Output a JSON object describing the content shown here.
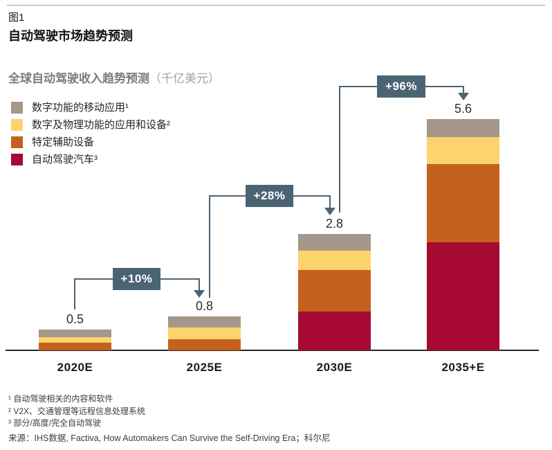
{
  "figure": {
    "fig_label": "图1",
    "title": "自动驾驶市场趋势预测",
    "subtitle": "全球自动驾驶收入趋势预测",
    "subtitle_unit": "（千亿美元）"
  },
  "legend": [
    {
      "label": "数字功能的移动应用¹",
      "color": "#a59789"
    },
    {
      "label": "数字及物理功能的应用和设备²",
      "color": "#fcd36d"
    },
    {
      "label": "特定辅助设备",
      "color": "#c4611f"
    },
    {
      "label": "自动驾驶汽车³",
      "color": "#a60a33"
    }
  ],
  "chart_data": {
    "type": "bar",
    "stacked": true,
    "title": "全球自动驾驶收入趋势预测",
    "unit": "千亿美元",
    "categories": [
      "2020E",
      "2025E",
      "2030E",
      "2035+E"
    ],
    "totals": [
      "0.5",
      "0.8",
      "2.8",
      "5.6"
    ],
    "series": [
      {
        "name": "数字功能的移动应用",
        "color": "#a59789",
        "values": [
          0.18,
          0.27,
          0.4,
          0.43
        ]
      },
      {
        "name": "数字及物理功能的应用和设备",
        "color": "#fcd36d",
        "values": [
          0.13,
          0.28,
          0.46,
          0.65
        ]
      },
      {
        "name": "特定辅助设备",
        "color": "#c4611f",
        "values": [
          0.19,
          0.27,
          1.01,
          1.88
        ]
      },
      {
        "name": "自动驾驶汽车",
        "color": "#a60a33",
        "values": [
          0,
          0,
          0.93,
          2.6
        ]
      }
    ],
    "growth_labels": [
      "+10%",
      "+28%",
      "+96%"
    ],
    "accent_color": "#4b6473",
    "legend_position": "top-left",
    "grid": false
  },
  "footnotes": [
    "¹ 自动驾驶相关的内容和软件",
    "² V2X、交通管理等远程信息处理系统",
    "³ 部分/高度/完全自动驾驶"
  ],
  "source": "来源：IHS数据, Factiva, How Automakers Can Survive the Self-Driving Era；科尔尼"
}
